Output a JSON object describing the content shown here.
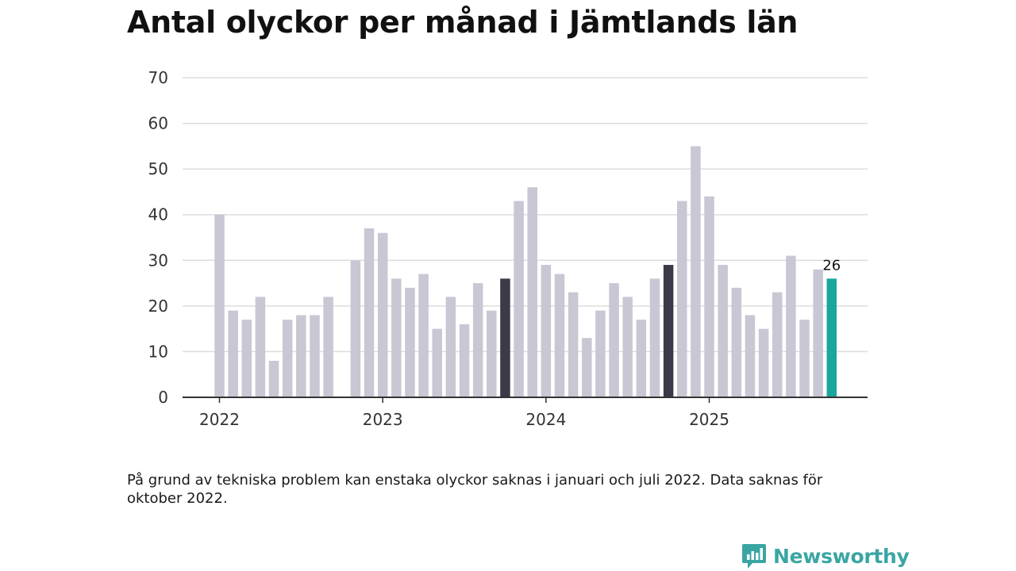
{
  "title": "Antal olyckor per månad i Jämtlands län",
  "footnote": "På grund av tekniska problem kan enstaka olyckor saknas i januari och juli 2022. Data saknas för oktober 2022.",
  "brand": {
    "name": "Newsworthy",
    "icon": "newsworthy-logo-icon"
  },
  "colors": {
    "default": "#c8c7d3",
    "highlight": "#3b3a48",
    "current": "#1aa59d",
    "grid": "#dddddd",
    "axis": "#333333"
  },
  "chart_data": {
    "type": "bar",
    "title": "Antal olyckor per månad i Jämtlands län",
    "xlabel": "",
    "ylabel": "",
    "ylim": [
      0,
      70
    ],
    "yticks": [
      0,
      10,
      20,
      30,
      40,
      50,
      60,
      70
    ],
    "xtick_labels": [
      {
        "label": "2022",
        "index": 0
      },
      {
        "label": "2023",
        "index": 12
      },
      {
        "label": "2024",
        "index": 24
      },
      {
        "label": "2025",
        "index": 36
      }
    ],
    "categories": [
      "2022-01",
      "2022-02",
      "2022-03",
      "2022-04",
      "2022-05",
      "2022-06",
      "2022-07",
      "2022-08",
      "2022-09",
      "2022-10",
      "2022-11",
      "2022-12",
      "2023-01",
      "2023-02",
      "2023-03",
      "2023-04",
      "2023-05",
      "2023-06",
      "2023-07",
      "2023-08",
      "2023-09",
      "2023-10",
      "2023-11",
      "2023-12",
      "2024-01",
      "2024-02",
      "2024-03",
      "2024-04",
      "2024-05",
      "2024-06",
      "2024-07",
      "2024-08",
      "2024-09",
      "2024-10",
      "2024-11",
      "2024-12",
      "2025-01",
      "2025-02",
      "2025-03",
      "2025-04",
      "2025-05",
      "2025-06",
      "2025-07",
      "2025-08",
      "2025-09",
      "2025-10"
    ],
    "values": [
      40,
      19,
      17,
      22,
      8,
      17,
      18,
      18,
      22,
      null,
      30,
      37,
      36,
      26,
      24,
      27,
      15,
      22,
      16,
      25,
      19,
      26,
      43,
      46,
      29,
      27,
      23,
      13,
      19,
      25,
      22,
      17,
      26,
      29,
      43,
      55,
      44,
      29,
      24,
      18,
      15,
      23,
      31,
      17,
      28,
      26
    ],
    "highlighted": [
      "2023-10",
      "2024-10"
    ],
    "current": "2025-10",
    "annotation": {
      "category": "2025-10",
      "text": "26"
    }
  }
}
